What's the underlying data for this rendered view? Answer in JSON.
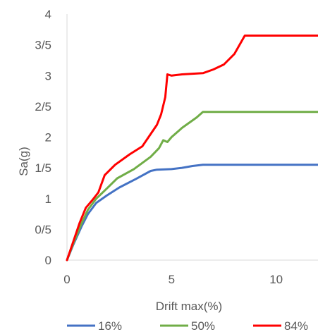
{
  "chart_data": {
    "type": "line",
    "title": "",
    "xlabel": "Drift max(%)",
    "ylabel": "Sa(g)",
    "xlim": [
      0,
      12
    ],
    "ylim": [
      0,
      4
    ],
    "x_ticks": [
      {
        "value": 0,
        "label": "0"
      },
      {
        "value": 5,
        "label": "5"
      },
      {
        "value": 10,
        "label": "10"
      }
    ],
    "y_ticks": [
      {
        "value": 0,
        "label": "0"
      },
      {
        "value": 0.5,
        "label": "0/5"
      },
      {
        "value": 1,
        "label": "1"
      },
      {
        "value": 1.5,
        "label": "1/5"
      },
      {
        "value": 2,
        "label": "2"
      },
      {
        "value": 2.5,
        "label": "2/5"
      },
      {
        "value": 3,
        "label": "3"
      },
      {
        "value": 3.5,
        "label": "3/5"
      },
      {
        "value": 4,
        "label": "4"
      }
    ],
    "grid": false,
    "legend_position": "bottom",
    "series": [
      {
        "name": "16%",
        "color": "#4472C4",
        "points": [
          [
            0,
            0
          ],
          [
            0.3,
            0.25
          ],
          [
            0.7,
            0.55
          ],
          [
            1.0,
            0.75
          ],
          [
            1.4,
            0.93
          ],
          [
            1.9,
            1.05
          ],
          [
            2.5,
            1.18
          ],
          [
            3.3,
            1.32
          ],
          [
            4.0,
            1.45
          ],
          [
            4.3,
            1.47
          ],
          [
            5.0,
            1.48
          ],
          [
            5.5,
            1.5
          ],
          [
            6.0,
            1.53
          ],
          [
            6.5,
            1.55
          ],
          [
            12,
            1.55
          ]
        ]
      },
      {
        "name": "50%",
        "color": "#70AD47",
        "points": [
          [
            0,
            0
          ],
          [
            0.3,
            0.27
          ],
          [
            0.7,
            0.6
          ],
          [
            1.0,
            0.82
          ],
          [
            1.4,
            1.0
          ],
          [
            1.8,
            1.13
          ],
          [
            2.4,
            1.33
          ],
          [
            3.2,
            1.48
          ],
          [
            4.0,
            1.68
          ],
          [
            4.4,
            1.82
          ],
          [
            4.6,
            1.95
          ],
          [
            4.8,
            1.92
          ],
          [
            5.0,
            2.0
          ],
          [
            5.5,
            2.15
          ],
          [
            6.2,
            2.32
          ],
          [
            6.5,
            2.41
          ],
          [
            12,
            2.41
          ]
        ]
      },
      {
        "name": "84%",
        "color": "#FF0000",
        "points": [
          [
            0,
            0
          ],
          [
            0.3,
            0.3
          ],
          [
            0.6,
            0.6
          ],
          [
            0.9,
            0.85
          ],
          [
            1.2,
            0.97
          ],
          [
            1.5,
            1.1
          ],
          [
            1.8,
            1.38
          ],
          [
            2.3,
            1.55
          ],
          [
            3.0,
            1.72
          ],
          [
            3.6,
            1.85
          ],
          [
            4.0,
            2.05
          ],
          [
            4.3,
            2.2
          ],
          [
            4.5,
            2.37
          ],
          [
            4.7,
            2.65
          ],
          [
            4.8,
            3.02
          ],
          [
            5.0,
            3.0
          ],
          [
            5.5,
            3.02
          ],
          [
            6.0,
            3.03
          ],
          [
            6.5,
            3.04
          ],
          [
            7.0,
            3.1
          ],
          [
            7.5,
            3.18
          ],
          [
            8.0,
            3.35
          ],
          [
            8.5,
            3.65
          ],
          [
            12,
            3.65
          ]
        ]
      }
    ]
  }
}
